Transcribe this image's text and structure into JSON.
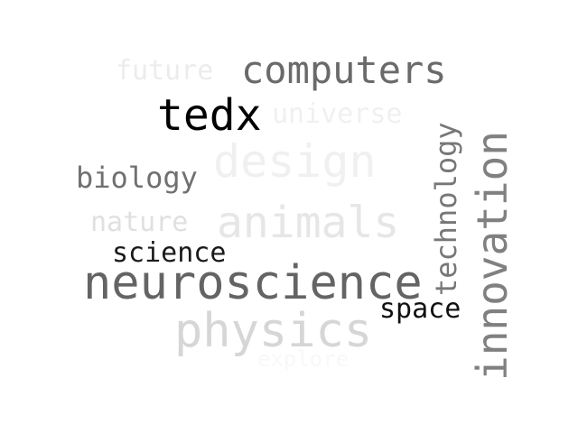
{
  "word_cloud": {
    "words": [
      {
        "text": "future",
        "color": "#ececec"
      },
      {
        "text": "computers",
        "color": "#6a6a6a"
      },
      {
        "text": "tedx",
        "color": "#000000"
      },
      {
        "text": "universe",
        "color": "#f0f0f0"
      },
      {
        "text": "design",
        "color": "#f0f0f0"
      },
      {
        "text": "biology",
        "color": "#707070"
      },
      {
        "text": "nature",
        "color": "#e0e0e0"
      },
      {
        "text": "animals",
        "color": "#e6e6e6"
      },
      {
        "text": "science",
        "color": "#1a1a1a"
      },
      {
        "text": "neuroscience",
        "color": "#646464"
      },
      {
        "text": "physics",
        "color": "#d6d6d6"
      },
      {
        "text": "space",
        "color": "#111111"
      },
      {
        "text": "technology",
        "color": "#777777"
      },
      {
        "text": "innovation",
        "color": "#808080"
      },
      {
        "text": "explore",
        "color": "#f8f8f8"
      }
    ]
  }
}
